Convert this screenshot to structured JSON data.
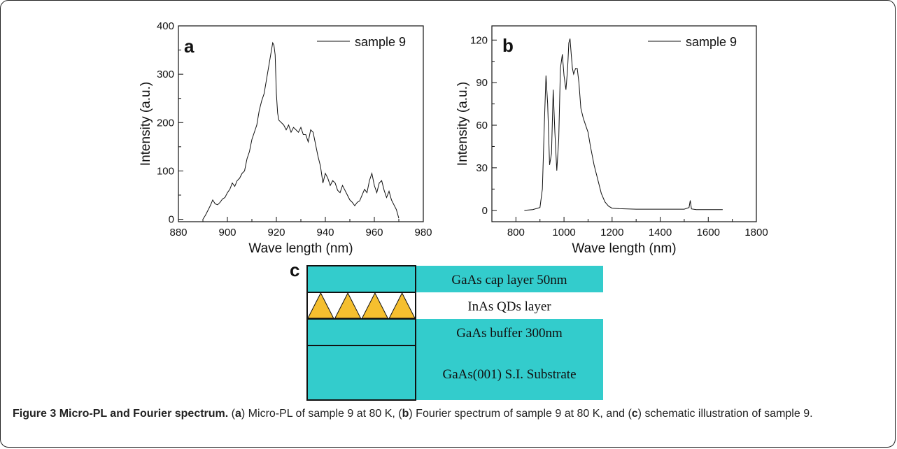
{
  "chart_data": [
    {
      "type": "line",
      "panel_label": "a",
      "xlabel": "Wave length (nm)",
      "ylabel": "Intensity (a.u.)",
      "xlim": [
        880,
        980
      ],
      "ylim": [
        -5,
        400
      ],
      "xticks": [
        880,
        900,
        920,
        940,
        960,
        980
      ],
      "yticks": [
        0,
        100,
        200,
        300,
        400
      ],
      "x_minor_ticks": [
        890,
        910,
        930,
        950,
        970
      ],
      "y_minor_ticks": [
        50,
        150,
        250,
        350
      ],
      "legend": "top-right",
      "series": [
        {
          "name": "sample 9",
          "color": "#111111",
          "x": [
            890,
            891,
            892,
            893,
            894,
            895,
            896,
            897,
            898,
            899,
            900,
            901,
            902,
            903,
            904,
            905,
            906,
            907,
            908,
            909,
            910,
            911,
            912,
            913,
            914,
            915,
            916,
            917,
            918,
            918.5,
            919,
            919.5,
            920,
            920.5,
            921,
            922,
            923,
            924,
            925,
            926,
            927,
            928,
            929,
            930,
            931,
            932,
            933,
            934,
            935,
            936,
            937,
            938,
            939,
            940,
            941,
            942,
            943,
            944,
            945,
            946,
            947,
            948,
            949,
            950,
            951,
            952,
            953,
            954,
            955,
            956,
            957,
            958,
            959,
            960,
            961,
            962,
            963,
            964,
            965,
            966,
            967,
            968,
            969,
            970
          ],
          "values": [
            0,
            8,
            18,
            28,
            40,
            32,
            30,
            35,
            42,
            45,
            55,
            62,
            75,
            68,
            80,
            85,
            95,
            100,
            125,
            140,
            165,
            180,
            195,
            225,
            245,
            260,
            290,
            320,
            350,
            365,
            360,
            340,
            260,
            220,
            205,
            200,
            195,
            185,
            195,
            180,
            190,
            185,
            180,
            190,
            175,
            175,
            160,
            185,
            180,
            155,
            130,
            110,
            75,
            95,
            85,
            70,
            80,
            75,
            60,
            55,
            70,
            60,
            50,
            40,
            35,
            28,
            35,
            38,
            50,
            62,
            55,
            80,
            95,
            70,
            55,
            75,
            80,
            60,
            45,
            58,
            40,
            30,
            20,
            2
          ]
        }
      ]
    },
    {
      "type": "line",
      "panel_label": "b",
      "xlabel": "Wave length (nm)",
      "ylabel": "Intensity (a.u.)",
      "xlim": [
        700,
        1800
      ],
      "ylim": [
        -8,
        130
      ],
      "xticks": [
        800,
        1000,
        1200,
        1400,
        1600,
        1800
      ],
      "yticks": [
        0,
        30,
        60,
        90,
        120
      ],
      "x_minor_ticks": [
        900,
        1100,
        1300,
        1500,
        1700
      ],
      "y_minor_ticks": [
        15,
        45,
        75,
        105
      ],
      "legend": "top-right",
      "series": [
        {
          "name": "sample 9",
          "color": "#111111",
          "x": [
            835,
            870,
            900,
            910,
            918,
            925,
            932,
            940,
            948,
            955,
            962,
            970,
            978,
            985,
            993,
            1000,
            1008,
            1015,
            1020,
            1025,
            1030,
            1035,
            1040,
            1048,
            1055,
            1062,
            1070,
            1080,
            1090,
            1100,
            1110,
            1125,
            1140,
            1155,
            1170,
            1185,
            1200,
            1230,
            1300,
            1400,
            1500,
            1520,
            1525,
            1530,
            1550,
            1600,
            1660
          ],
          "values": [
            0,
            0.5,
            2,
            15,
            60,
            95,
            75,
            32,
            40,
            85,
            55,
            28,
            50,
            100,
            110,
            95,
            85,
            100,
            118,
            121,
            110,
            100,
            96,
            100,
            100,
            90,
            72,
            65,
            60,
            55,
            45,
            32,
            22,
            12,
            6,
            3,
            1.5,
            1.2,
            0.8,
            0.8,
            0.8,
            2,
            7,
            1,
            0.5,
            0.5,
            0.5
          ]
        }
      ]
    }
  ],
  "schematic": {
    "panel_label": "c",
    "layers": [
      {
        "label": "GaAs cap layer 50nm",
        "color": "#33cccc"
      },
      {
        "label": "InAs QDs layer",
        "color": "#ffffff",
        "dot_color": "#f5bf2f"
      },
      {
        "label": "GaAs buffer 300nm",
        "color": "#33cccc"
      },
      {
        "label": "GaAs(001) S.I. Substrate",
        "color": "#33cccc"
      }
    ]
  },
  "caption": {
    "figure_label": "Figure 3",
    "title": "Micro-PL and Fourier spectrum.",
    "parts": [
      "(",
      "a",
      ") Micro-PL of sample 9 at 80 K, (",
      "b",
      ") Fourier spectrum of sample 9 at 80 K, and (",
      "c",
      ") schematic illustration of sample 9."
    ]
  }
}
